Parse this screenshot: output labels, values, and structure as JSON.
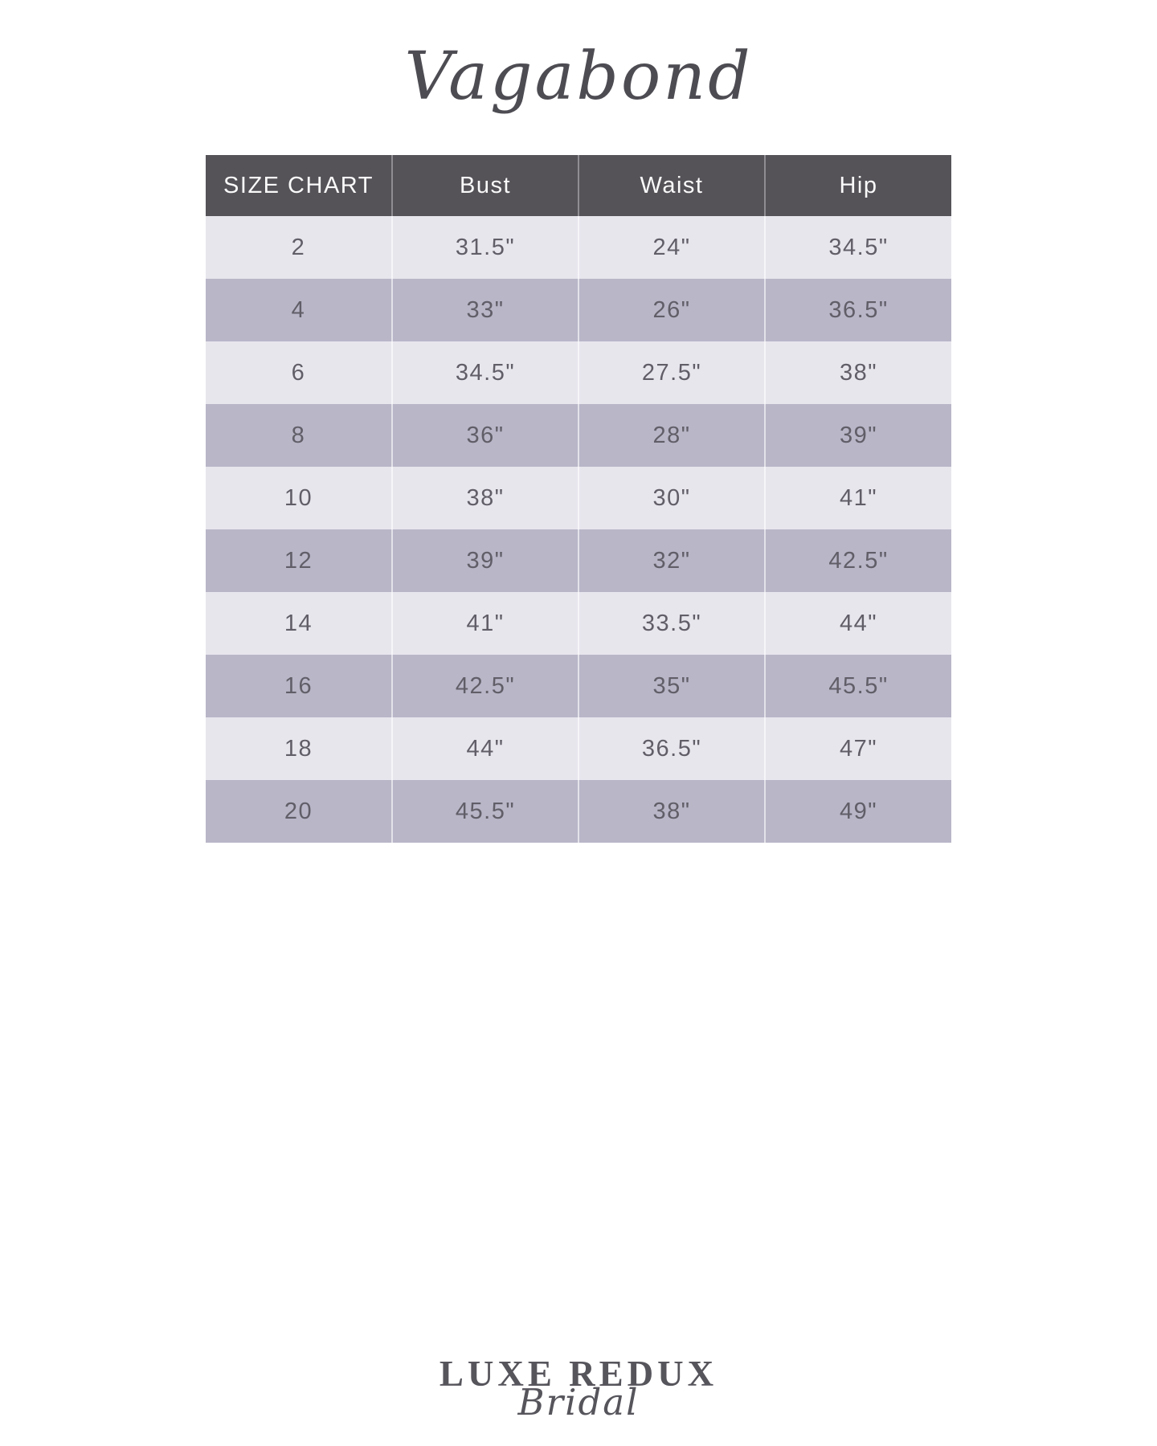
{
  "title": {
    "text": "Vagabond"
  },
  "chart_data": {
    "type": "table",
    "title": "Vagabond",
    "columns": [
      "SIZE CHART",
      "Bust",
      "Waist",
      "Hip"
    ],
    "rows": [
      [
        "2",
        "31.5\"",
        "24\"",
        "34.5\""
      ],
      [
        "4",
        "33\"",
        "26\"",
        "36.5\""
      ],
      [
        "6",
        "34.5\"",
        "27.5\"",
        "38\""
      ],
      [
        "8",
        "36\"",
        "28\"",
        "39\""
      ],
      [
        "10",
        "38\"",
        "30\"",
        "41\""
      ],
      [
        "12",
        "39\"",
        "32\"",
        "42.5\""
      ],
      [
        "14",
        "41\"",
        "33.5\"",
        "44\""
      ],
      [
        "16",
        "42.5\"",
        "35\"",
        "45.5\""
      ],
      [
        "18",
        "44\"",
        "36.5\"",
        "47\""
      ],
      [
        "20",
        "45.5\"",
        "38\"",
        "49\""
      ]
    ],
    "layout": {
      "legend": "none",
      "grid": "off",
      "row_striping": "alternating light/dark starting light"
    }
  },
  "footer_logo": {
    "line1": "LUXE REDUX",
    "line2": "Bridal"
  },
  "colors": {
    "page_bg": "#ffffff",
    "header_bg": "#555258",
    "header_text": "#fafafa",
    "row_light": "#e8e6ed",
    "row_dark": "#b8b6c7",
    "row_text": "#615e68",
    "ink": "#4e4c53",
    "logo_ink": "#57555c"
  }
}
